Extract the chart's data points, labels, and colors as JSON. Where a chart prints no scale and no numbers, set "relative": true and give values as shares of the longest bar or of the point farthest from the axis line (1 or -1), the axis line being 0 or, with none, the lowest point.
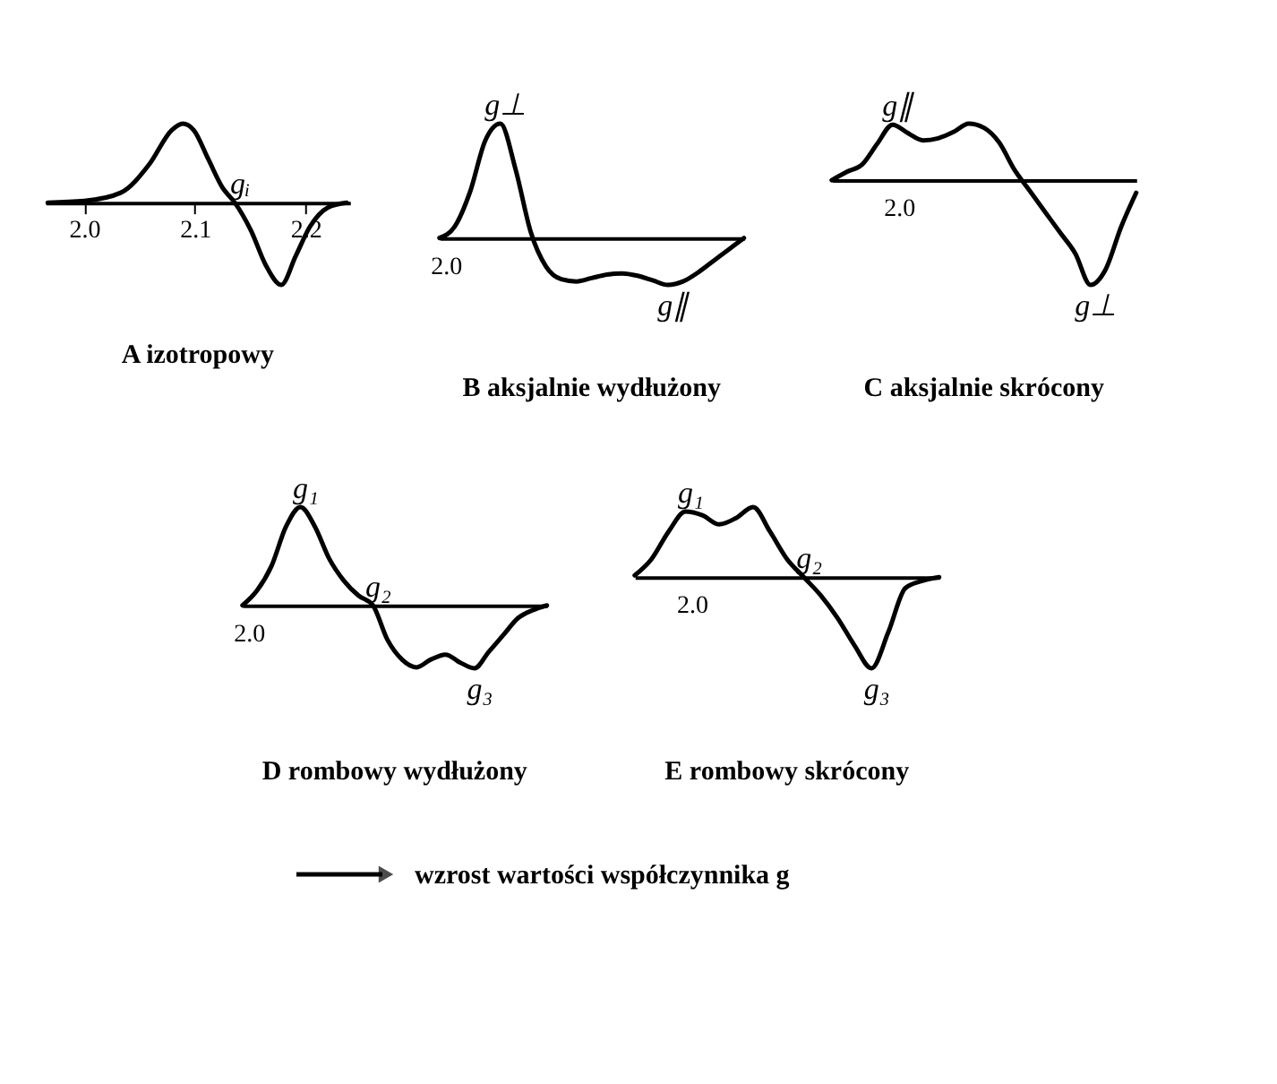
{
  "chart_data": [
    {
      "type": "line",
      "relative": true,
      "title": "A   izotropowy",
      "color": "#000000",
      "tick_labels": "x",
      "x": [
        1.967,
        2.0,
        2.033,
        2.059,
        2.079,
        2.089,
        2.099,
        2.112,
        2.125,
        2.136,
        2.151,
        2.164,
        2.178,
        2.191,
        2.204,
        2.22,
        2.237
      ],
      "values": [
        0,
        0.02,
        0.12,
        0.47,
        0.88,
        0.96,
        0.88,
        0.53,
        0.18,
        0,
        -0.35,
        -0.76,
        -1,
        -0.65,
        -0.29,
        -0.06,
        0
      ],
      "xlim": [
        1.965,
        2.24
      ],
      "xticks": [
        {
          "value": 2.0,
          "label": "2.0"
        },
        {
          "value": 2.1,
          "label": "2.1"
        },
        {
          "value": 2.2,
          "label": "2.2"
        }
      ],
      "annotations": [
        {
          "text": "gᵢ",
          "x": 2.136,
          "y": 0
        }
      ]
    },
    {
      "type": "line",
      "relative": true,
      "title": "B   aksjalnie  wydłużony",
      "color": "#000000",
      "tick_labels": false,
      "categories": [
        null,
        null,
        null,
        null,
        null,
        null,
        null,
        null,
        null,
        null,
        null,
        null,
        null,
        null,
        null,
        null,
        null,
        null,
        null,
        null,
        null
      ],
      "values": [
        0,
        0.1,
        0.4,
        0.85,
        1,
        0.6,
        0.05,
        -0.25,
        -0.36,
        -0.38,
        -0.35,
        -0.32,
        -0.31,
        -0.33,
        -0.37,
        -0.41,
        -0.38,
        -0.3,
        -0.2,
        -0.1,
        0
      ],
      "annotations": [
        "2.0",
        {
          "text": "g⊥",
          "y": 1
        },
        {
          "text": "g∥",
          "y": -0.41
        }
      ]
    },
    {
      "type": "line",
      "relative": true,
      "title": "C   aksjalnie  skrócony",
      "color": "#000000",
      "tick_labels": false,
      "categories": [
        null,
        null,
        null,
        null,
        null,
        null,
        null,
        null,
        null,
        null,
        null,
        null,
        null,
        null,
        null,
        null,
        null,
        null,
        null,
        null,
        null
      ],
      "values": [
        0,
        0.08,
        0.15,
        0.35,
        0.53,
        0.45,
        0.38,
        0.4,
        0.46,
        0.54,
        0.5,
        0.36,
        0.1,
        -0.1,
        -0.3,
        -0.5,
        -0.7,
        -1,
        -0.85,
        -0.45,
        -0.12
      ],
      "annotations": [
        {
          "text": "g∥",
          "y": 0.53
        },
        "2.0",
        {
          "text": "g⊥",
          "y": -1
        }
      ]
    },
    {
      "type": "line",
      "relative": true,
      "title": "D   rombowy  wydłużony",
      "color": "#000000",
      "tick_labels": false,
      "categories": [
        null,
        null,
        null,
        null,
        null,
        null,
        null,
        null,
        null,
        null,
        null,
        null,
        null,
        null,
        null,
        null,
        null,
        null,
        null,
        null,
        null,
        null
      ],
      "values": [
        0,
        0.15,
        0.4,
        0.8,
        1,
        0.8,
        0.47,
        0.25,
        0.1,
        0,
        -0.35,
        -0.55,
        -0.63,
        -0.55,
        -0.5,
        -0.58,
        -0.64,
        -0.47,
        -0.3,
        -0.13,
        -0.05,
        0
      ],
      "annotations": [
        "2.0",
        {
          "text": "g₁",
          "y": 1
        },
        {
          "text": "g₂",
          "y": 0
        },
        {
          "text": "g₃",
          "y": -0.64
        }
      ]
    },
    {
      "type": "line",
      "relative": true,
      "title": "E   rombowy   skrócony",
      "color": "#000000",
      "tick_labels": false,
      "categories": [
        null,
        null,
        null,
        null,
        null,
        null,
        null,
        null,
        null,
        null,
        null,
        null,
        null,
        null,
        null,
        null,
        null,
        null,
        null
      ],
      "values": [
        0.02,
        0.2,
        0.5,
        0.72,
        0.68,
        0.58,
        0.65,
        0.77,
        0.5,
        0.2,
        0,
        -0.2,
        -0.45,
        -0.75,
        -1,
        -0.6,
        -0.12,
        -0.04,
        0
      ],
      "annotations": [
        {
          "text": "g₁",
          "y": 0.72
        },
        "2.0",
        {
          "text": "g₂",
          "y": 0
        },
        {
          "text": "g₃",
          "y": -1
        }
      ]
    },
    {
      "type": "other",
      "annotations": [
        "wzrost wartości współczynnika g"
      ]
    }
  ]
}
